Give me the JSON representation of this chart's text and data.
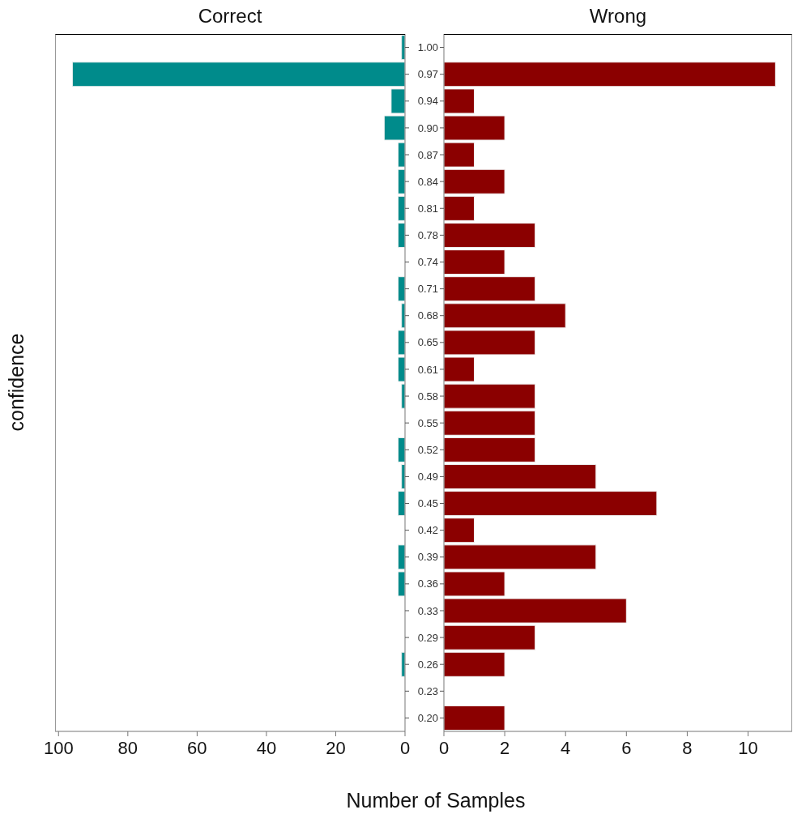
{
  "chart_data": [
    {
      "type": "bar",
      "orientation": "horizontal",
      "title": "Correct",
      "ylabel": "confidence",
      "tick_labels": "x",
      "categories": [
        "1.00",
        "0.97",
        "0.94",
        "0.90",
        "0.87",
        "0.84",
        "0.81",
        "0.78",
        "0.74",
        "0.71",
        "0.68",
        "0.65",
        "0.61",
        "0.58",
        "0.55",
        "0.52",
        "0.49",
        "0.45",
        "0.42",
        "0.39",
        "0.36",
        "0.33",
        "0.29",
        "0.26",
        "0.23",
        "0.20"
      ],
      "values": [
        1,
        96,
        4,
        6,
        2,
        2,
        2,
        2,
        0,
        2,
        1,
        2,
        2,
        1,
        0,
        2,
        1,
        2,
        0,
        2,
        2,
        0,
        0,
        1,
        0,
        0
      ],
      "color": "#008b8b",
      "xlim": [
        101,
        0
      ],
      "xticks": [
        100,
        80,
        60,
        40,
        20,
        0
      ]
    },
    {
      "type": "bar",
      "orientation": "horizontal",
      "title": "Wrong",
      "xlabel": "Number of Samples",
      "categories": [
        "1.00",
        "0.97",
        "0.94",
        "0.90",
        "0.87",
        "0.84",
        "0.81",
        "0.78",
        "0.74",
        "0.71",
        "0.68",
        "0.65",
        "0.61",
        "0.58",
        "0.55",
        "0.52",
        "0.49",
        "0.45",
        "0.42",
        "0.39",
        "0.36",
        "0.33",
        "0.29",
        "0.26",
        "0.23",
        "0.20"
      ],
      "values": [
        0,
        10.9,
        1,
        2,
        1,
        2,
        1,
        3,
        2,
        3,
        4,
        3,
        1,
        3,
        3,
        3,
        5,
        7,
        1,
        5,
        2,
        6,
        3,
        2,
        0,
        2
      ],
      "color": "#8b0000",
      "xlim": [
        0,
        11.45
      ],
      "xticks": [
        0,
        2,
        4,
        6,
        8,
        10
      ]
    }
  ]
}
